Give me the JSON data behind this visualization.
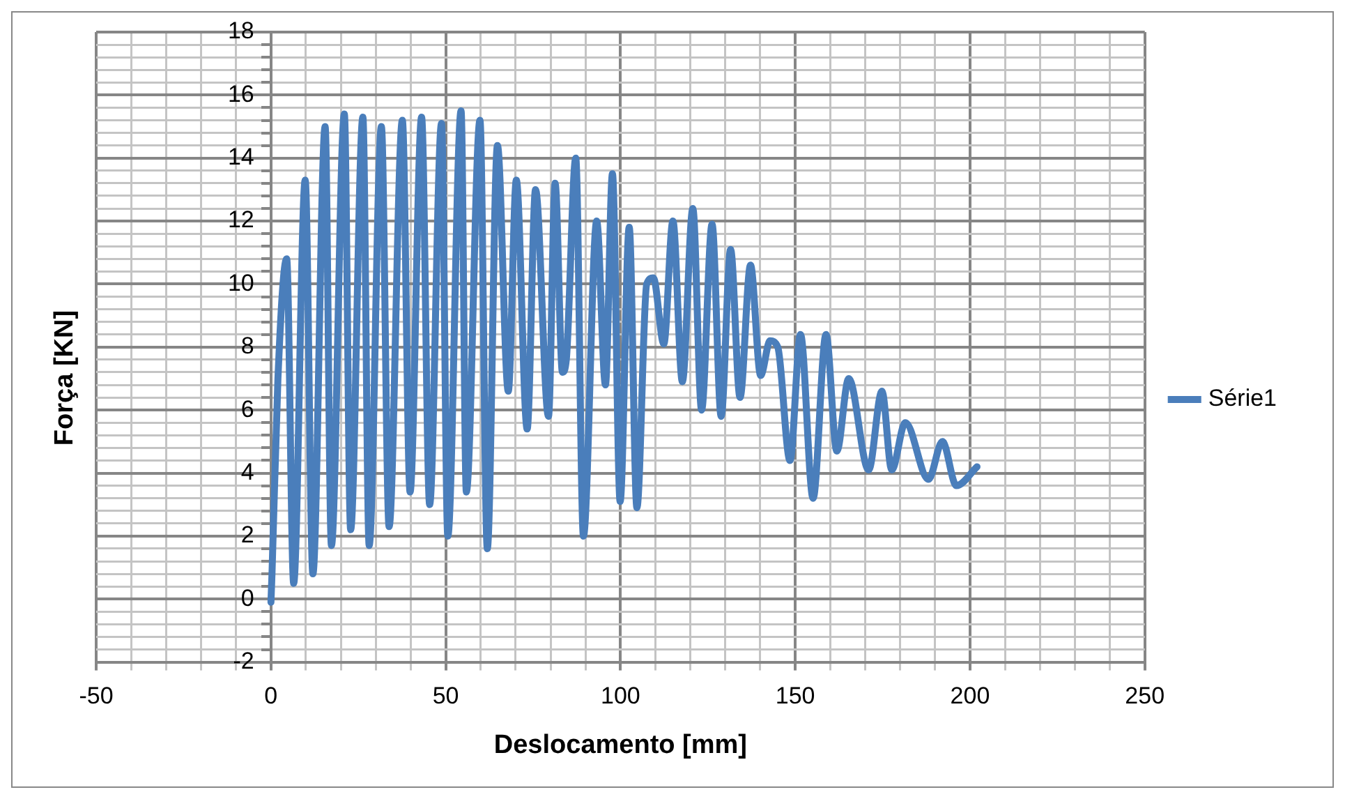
{
  "chart_data": {
    "type": "line",
    "xlabel": "Deslocamento [mm]",
    "ylabel": "Força [KN]",
    "xlim": [
      -50,
      250
    ],
    "ylim": [
      -2,
      18
    ],
    "xticks": [
      -50,
      {
        "value": -40,
        "label": null
      },
      {
        "value": -30,
        "label": null
      },
      {
        "value": -20,
        "label": null
      },
      {
        "value": -10,
        "label": null
      },
      0,
      {
        "value": 10,
        "label": null
      },
      {
        "value": 20,
        "label": null
      },
      {
        "value": 30,
        "label": null
      },
      {
        "value": 40,
        "label": null
      },
      50,
      {
        "value": 60,
        "label": null
      },
      {
        "value": 70,
        "label": null
      },
      {
        "value": 80,
        "label": null
      },
      {
        "value": 90,
        "label": null
      },
      100,
      {
        "value": 110,
        "label": null
      },
      {
        "value": 120,
        "label": null
      },
      {
        "value": 130,
        "label": null
      },
      {
        "value": 140,
        "label": null
      },
      150,
      {
        "value": 160,
        "label": null
      },
      {
        "value": 170,
        "label": null
      },
      {
        "value": 180,
        "label": null
      },
      {
        "value": 190,
        "label": null
      },
      200,
      {
        "value": 210,
        "label": null
      },
      {
        "value": 220,
        "label": null
      },
      {
        "value": 230,
        "label": null
      },
      {
        "value": 240,
        "label": null
      },
      250
    ],
    "yticks": [
      -2,
      {
        "value": -1.6,
        "label": null
      },
      {
        "value": -1.2,
        "label": null
      },
      {
        "value": -0.8,
        "label": null
      },
      {
        "value": -0.4,
        "label": null
      },
      0,
      {
        "value": 0.4,
        "label": null
      },
      {
        "value": 0.8,
        "label": null
      },
      {
        "value": 1.2,
        "label": null
      },
      {
        "value": 1.6,
        "label": null
      },
      2,
      {
        "value": 2.4,
        "label": null
      },
      {
        "value": 2.8,
        "label": null
      },
      {
        "value": 3.2,
        "label": null
      },
      {
        "value": 3.6,
        "label": null
      },
      4,
      {
        "value": 4.4,
        "label": null
      },
      {
        "value": 4.8,
        "label": null
      },
      {
        "value": 5.2,
        "label": null
      },
      {
        "value": 5.6,
        "label": null
      },
      6,
      {
        "value": 6.4,
        "label": null
      },
      {
        "value": 6.8,
        "label": null
      },
      {
        "value": 7.2,
        "label": null
      },
      {
        "value": 7.6,
        "label": null
      },
      8,
      {
        "value": 8.4,
        "label": null
      },
      {
        "value": 8.8,
        "label": null
      },
      {
        "value": 9.2,
        "label": null
      },
      {
        "value": 9.6,
        "label": null
      },
      10,
      {
        "value": 10.4,
        "label": null
      },
      {
        "value": 10.8,
        "label": null
      },
      {
        "value": 11.2,
        "label": null
      },
      {
        "value": 11.6,
        "label": null
      },
      12,
      {
        "value": 12.4,
        "label": null
      },
      {
        "value": 12.8,
        "label": null
      },
      {
        "value": 13.2,
        "label": null
      },
      {
        "value": 13.6,
        "label": null
      },
      14,
      {
        "value": 14.4,
        "label": null
      },
      {
        "value": 14.8,
        "label": null
      },
      {
        "value": 15.2,
        "label": null
      },
      {
        "value": 15.6,
        "label": null
      },
      16,
      {
        "value": 16.4,
        "label": null
      },
      {
        "value": 16.8,
        "label": null
      },
      {
        "value": 17.2,
        "label": null
      },
      {
        "value": 17.6,
        "label": null
      },
      18
    ],
    "grid": true,
    "legend": "right",
    "marker": "none",
    "line_style": "solid",
    "series": [
      {
        "name": "Série1",
        "color": "#4a7ebb",
        "x": [
          0,
          0.3,
          2,
          4.5,
          6.5,
          9.8,
          12,
          15.5,
          17.3,
          21,
          22.8,
          26.3,
          28.1,
          31.6,
          33.8,
          37.6,
          39.8,
          43.1,
          45.4,
          48.8,
          50.6,
          54.4,
          55.9,
          59.8,
          61.9,
          64.8,
          67.9,
          70.2,
          73.3,
          75.7,
          79.4,
          81.3,
          83.4,
          84.5,
          87.2,
          89.4,
          93.2,
          95.7,
          97.7,
          99.9,
          102.5,
          104.7,
          107.5,
          109.4,
          112.4,
          115,
          117.7,
          120.7,
          123.2,
          126.2,
          128.8,
          131.5,
          134.2,
          137.2,
          140.1,
          142.8,
          145,
          148.5,
          151.5,
          155.1,
          158.8,
          161.9,
          165.3,
          171,
          174.8,
          177.6,
          181.5,
          188.1,
          192.1,
          196.1,
          202
        ],
        "values": [
          -0.1,
          0.8,
          7,
          10.8,
          0.5,
          13.3,
          0.8,
          15,
          1.7,
          15.4,
          2.2,
          15.3,
          1.7,
          15,
          2.3,
          15.2,
          3.4,
          15.3,
          3,
          15.1,
          2,
          15.5,
          3.4,
          15.2,
          1.6,
          14.4,
          6.6,
          13.3,
          5.4,
          13,
          5.8,
          13.2,
          7.2,
          7.6,
          14,
          2,
          12,
          6.8,
          13.5,
          3.1,
          11.8,
          2.9,
          10,
          10.2,
          8.1,
          12,
          6.9,
          12.4,
          6,
          11.9,
          5.8,
          11.1,
          6.4,
          10.6,
          7.1,
          8.2,
          8,
          4.4,
          8.4,
          3.2,
          8.4,
          4.7,
          7,
          4.1,
          6.6,
          4.1,
          5.6,
          3.8,
          5,
          3.6,
          4.2
        ]
      }
    ]
  }
}
